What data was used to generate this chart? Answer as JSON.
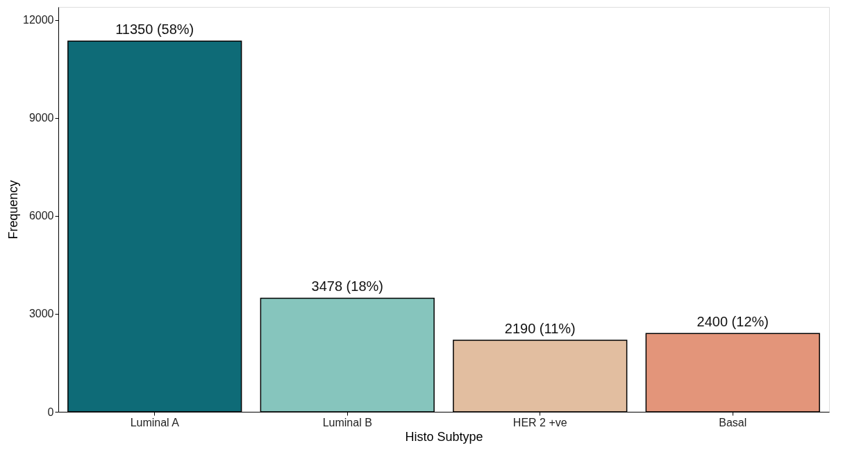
{
  "chart_data": {
    "type": "bar",
    "xlabel": "Histo Subtype",
    "ylabel": "Frequency",
    "categories": [
      "Luminal A",
      "Luminal B",
      "HER 2 +ve",
      "Basal"
    ],
    "values": [
      11350,
      3478,
      2190,
      2400
    ],
    "colors": [
      "#0e6b77",
      "#86c5bd",
      "#e2bea0",
      "#e3957a"
    ],
    "value_labels": [
      "11350 (58%)",
      "3478 (18%)",
      "2190 (11%)",
      "2400 (12%)"
    ],
    "ylim": [
      0,
      12400
    ],
    "yticks": [
      0,
      3000,
      6000,
      9000,
      12000
    ],
    "grid": false
  }
}
